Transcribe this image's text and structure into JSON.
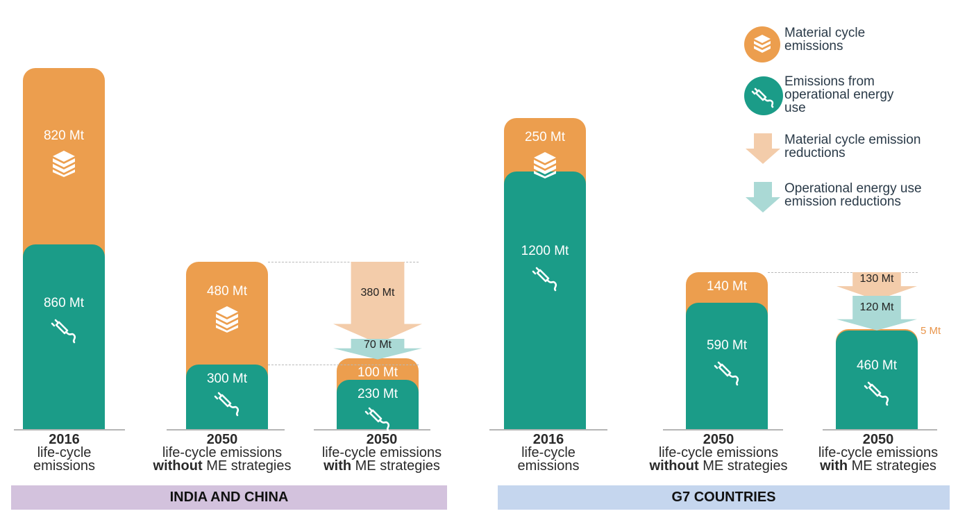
{
  "colors": {
    "material": "#ec9e4e",
    "operational": "#1b9c88",
    "material_reduction": "#f3ccaa",
    "operational_reduction": "#aad9d5",
    "band_india_china": "#d3c2dd",
    "band_g7": "#c5d6ee"
  },
  "legend": [
    {
      "label": "Material cycle emissions",
      "icon": "bricks-icon"
    },
    {
      "label": "Emissions from operational energy use",
      "icon": "plug-icon"
    },
    {
      "label": "Material cycle emission reductions",
      "icon": "arrow-down-icon"
    },
    {
      "label": "Operational energy use emission reductions",
      "icon": "arrow-down-icon"
    }
  ],
  "groups": {
    "india_china": "INDIA AND CHINA",
    "g7": "G7 COUNTRIES"
  },
  "captions": {
    "year_2016": "2016",
    "year_2050": "2050",
    "lc_emissions": "life-cycle emissions",
    "lc_emissions_hy": "life-cycle",
    "emissions_word": "emissions",
    "without": "without",
    "with": "with",
    "me_strategies": "ME strategies"
  },
  "chart_data": {
    "type": "bar",
    "stacked": true,
    "unit": "Mt",
    "series": [
      "Material cycle emissions",
      "Emissions from operational energy use"
    ],
    "groups": [
      {
        "name": "INDIA AND CHINA",
        "bars": [
          {
            "key": "ic_2016",
            "label": "2016 life-cycle emissions",
            "material": 820,
            "operational": 860,
            "material_label": "820 Mt",
            "operational_label": "860 Mt"
          },
          {
            "key": "ic_2050_without",
            "label": "2050 life-cycle emissions without ME strategies",
            "material": 480,
            "operational": 300,
            "material_label": "480 Mt",
            "operational_label": "300 Mt"
          },
          {
            "key": "ic_2050_with",
            "label": "2050 life-cycle emissions with ME strategies",
            "material": 100,
            "operational": 230,
            "material_label": "100 Mt",
            "operational_label": "230 Mt",
            "material_reduction": 380,
            "operational_reduction": 70,
            "material_reduction_label": "380 Mt",
            "operational_reduction_label": "70 Mt"
          }
        ]
      },
      {
        "name": "G7 COUNTRIES",
        "bars": [
          {
            "key": "g7_2016",
            "label": "2016 life-cycle emissions",
            "material": 250,
            "operational": 1200,
            "material_label": "250 Mt",
            "operational_label": "1200 Mt"
          },
          {
            "key": "g7_2050_without",
            "label": "2050 life-cycle emissions without ME strategies",
            "material": 140,
            "operational": 590,
            "material_label": "140 Mt",
            "operational_label": "590 Mt"
          },
          {
            "key": "g7_2050_with",
            "label": "2050 life-cycle emissions with ME strategies",
            "material": 5,
            "operational": 460,
            "material_label": "5 Mt",
            "operational_label": "460 Mt",
            "material_reduction": 130,
            "operational_reduction": 120,
            "material_reduction_label": "130 Mt",
            "operational_reduction_label": "120 Mt"
          }
        ]
      }
    ]
  }
}
